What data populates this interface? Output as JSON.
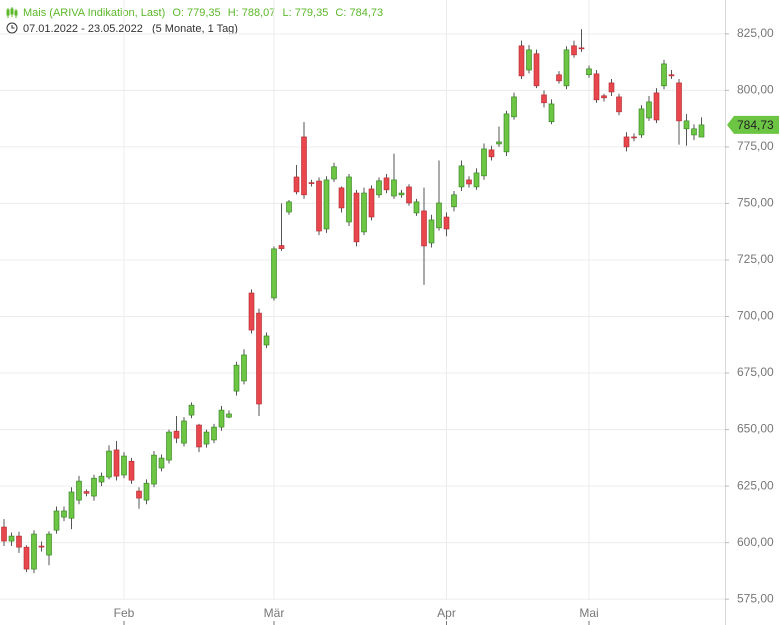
{
  "chart_data": {
    "type": "candlestick",
    "title": "Mais (ARIVA Indikation, Last)",
    "ohlc_labels": [
      "O: 779,35",
      "H: 788,07",
      "L: 779,35",
      "C: 784,73"
    ],
    "date_range": "07.01.2022 - 23.05.2022",
    "period": "(5 Monate, 1 Tag)",
    "last_label": "784,73",
    "up_color": "#6cc644",
    "down_color": "#e8474d",
    "grid": true,
    "categories": [
      null,
      null,
      null,
      null,
      null,
      null,
      null,
      null,
      null,
      null,
      null,
      null,
      null,
      null,
      null,
      null,
      "Feb",
      null,
      null,
      null,
      null,
      null,
      null,
      null,
      null,
      null,
      null,
      null,
      null,
      null,
      null,
      null,
      null,
      null,
      null,
      null,
      "Mär",
      null,
      null,
      null,
      null,
      null,
      null,
      null,
      null,
      null,
      null,
      null,
      null,
      null,
      null,
      null,
      null,
      null,
      null,
      null,
      null,
      null,
      null,
      "Apr",
      null,
      null,
      null,
      null,
      null,
      null,
      null,
      null,
      null,
      null,
      null,
      null,
      null,
      null,
      null,
      null,
      null,
      null,
      "Mai",
      null,
      null,
      null,
      null,
      null,
      null,
      null,
      null,
      null,
      null,
      null,
      null,
      null,
      null,
      null
    ],
    "open": [
      606.9,
      600.7,
      602.9,
      598,
      588.3,
      598.5,
      594.5,
      605.5,
      611.3,
      610.8,
      618.8,
      622.6,
      620.6,
      626.8,
      629,
      641,
      629.9,
      636,
      622.8,
      618.8,
      625.9,
      633,
      636.5,
      649.3,
      644,
      656.4,
      652,
      643.6,
      645.4,
      651.1,
      655.5,
      667,
      671.5,
      710.4,
      701.5,
      687.4,
      708.2,
      731.4,
      746.2,
      761.7,
      779.4,
      759.2,
      759.9,
      738.7,
      760.8,
      756.9,
      741.8,
      754.6,
      737.4,
      756.4,
      753.8,
      761.3,
      753.3,
      753.8,
      757.3,
      745.8,
      746.7,
      732.5,
      739.2,
      744,
      748.5,
      757.3,
      760.4,
      757.3,
      762.2,
      773.7,
      776.3,
      772.8,
      788.3,
      819.7,
      809,
      816.2,
      798,
      786.1,
      806.9,
      802,
      819.7,
      818.8,
      806.9,
      807.3,
      797.6,
      803.3,
      797.1,
      779.4,
      779.4,
      780.3,
      787.8,
      798.9,
      802,
      806.9,
      803.3,
      783,
      780.3,
      779.35
    ],
    "high": [
      610.4,
      604.5,
      604.8,
      598.8,
      605.5,
      600.5,
      605,
      616,
      616,
      624.5,
      629.5,
      623.5,
      630,
      631,
      643,
      645,
      640,
      637.5,
      624.5,
      628,
      640.5,
      639,
      650,
      656,
      655.5,
      662,
      652.5,
      650,
      652.5,
      660.5,
      658.5,
      680,
      685.5,
      712,
      703.5,
      693,
      731,
      750,
      751.5,
      767,
      786,
      760.5,
      761.5,
      762,
      768,
      757.5,
      763,
      756,
      757,
      758,
      761.5,
      763,
      772,
      756,
      758.5,
      752,
      757,
      745,
      769,
      746,
      755.5,
      769,
      762,
      765.5,
      776.5,
      775.5,
      784,
      791,
      799,
      822,
      820,
      818,
      800,
      796,
      808.5,
      819.5,
      822,
      827,
      811,
      809,
      798.5,
      805,
      798.5,
      781.5,
      781,
      793.5,
      797.5,
      801,
      813.5,
      809,
      805,
      789.5,
      785,
      788.07
    ],
    "low": [
      598.5,
      598.5,
      595.5,
      587,
      586.5,
      596,
      590,
      604,
      609.5,
      606,
      617,
      620.5,
      618.5,
      625,
      628,
      627.5,
      628.5,
      626,
      615,
      617,
      624.5,
      631.5,
      635,
      644,
      642.5,
      655,
      640,
      642,
      644,
      649.5,
      655,
      665,
      670,
      692.5,
      656,
      686,
      707,
      729,
      745,
      754,
      752,
      757.5,
      736,
      737,
      759.5,
      746,
      740,
      731,
      736,
      742.5,
      752.5,
      754.5,
      752,
      752.5,
      749,
      744.5,
      714,
      730.5,
      738,
      735.5,
      746.5,
      755.5,
      757,
      756,
      760.5,
      769,
      775,
      771,
      787,
      805,
      807.5,
      801,
      792.5,
      785,
      803,
      800.5,
      814.5,
      817,
      805.5,
      794.5,
      795,
      797.5,
      789,
      773,
      777.5,
      779,
      786.5,
      785.5,
      800.5,
      805,
      776,
      775.5,
      778,
      779.35
    ],
    "close": [
      600.7,
      602.9,
      598,
      588.3,
      603.8,
      598,
      603.8,
      614,
      614,
      622.4,
      627.2,
      621.8,
      628.5,
      629.4,
      640.5,
      629.4,
      638.3,
      627.6,
      619.7,
      626.3,
      638.7,
      637.4,
      648.9,
      646.2,
      653.8,
      660.8,
      642.3,
      648.9,
      651.1,
      658.6,
      656.9,
      678.5,
      683,
      694,
      661.3,
      691.4,
      729.9,
      730,
      750.7,
      755.1,
      753.8,
      758.8,
      737.8,
      760.4,
      766.2,
      748,
      761.7,
      733,
      754.6,
      744,
      760,
      756,
      760.4,
      754.6,
      750.2,
      750.7,
      731.2,
      742.7,
      750.2,
      738.7,
      753.8,
      766.6,
      758.6,
      763.5,
      774.1,
      770.6,
      777.2,
      789.6,
      797.1,
      806.4,
      817.9,
      802,
      794.5,
      794,
      804.2,
      817.9,
      815.7,
      818.4,
      809.5,
      795.8,
      796.7,
      799.3,
      790.5,
      775,
      779,
      791.8,
      794.9,
      786.9,
      811.7,
      806.4,
      786.5,
      786.5,
      783,
      784.73
    ],
    "ylim": [
      568,
      832
    ],
    "yticks": [
      {
        "value": 575,
        "label": "575,00"
      },
      {
        "value": 600,
        "label": "600,00"
      },
      {
        "value": 625,
        "label": "625,00"
      },
      {
        "value": 650,
        "label": "650,00"
      },
      {
        "value": 675,
        "label": "675,00"
      },
      {
        "value": 700,
        "label": "700,00"
      },
      {
        "value": 725,
        "label": "725,00"
      },
      {
        "value": 750,
        "label": "750,00"
      },
      {
        "value": 775,
        "label": "775,00"
      },
      {
        "value": 800,
        "label": "800,00"
      },
      {
        "value": 825,
        "label": "825,00"
      }
    ]
  }
}
